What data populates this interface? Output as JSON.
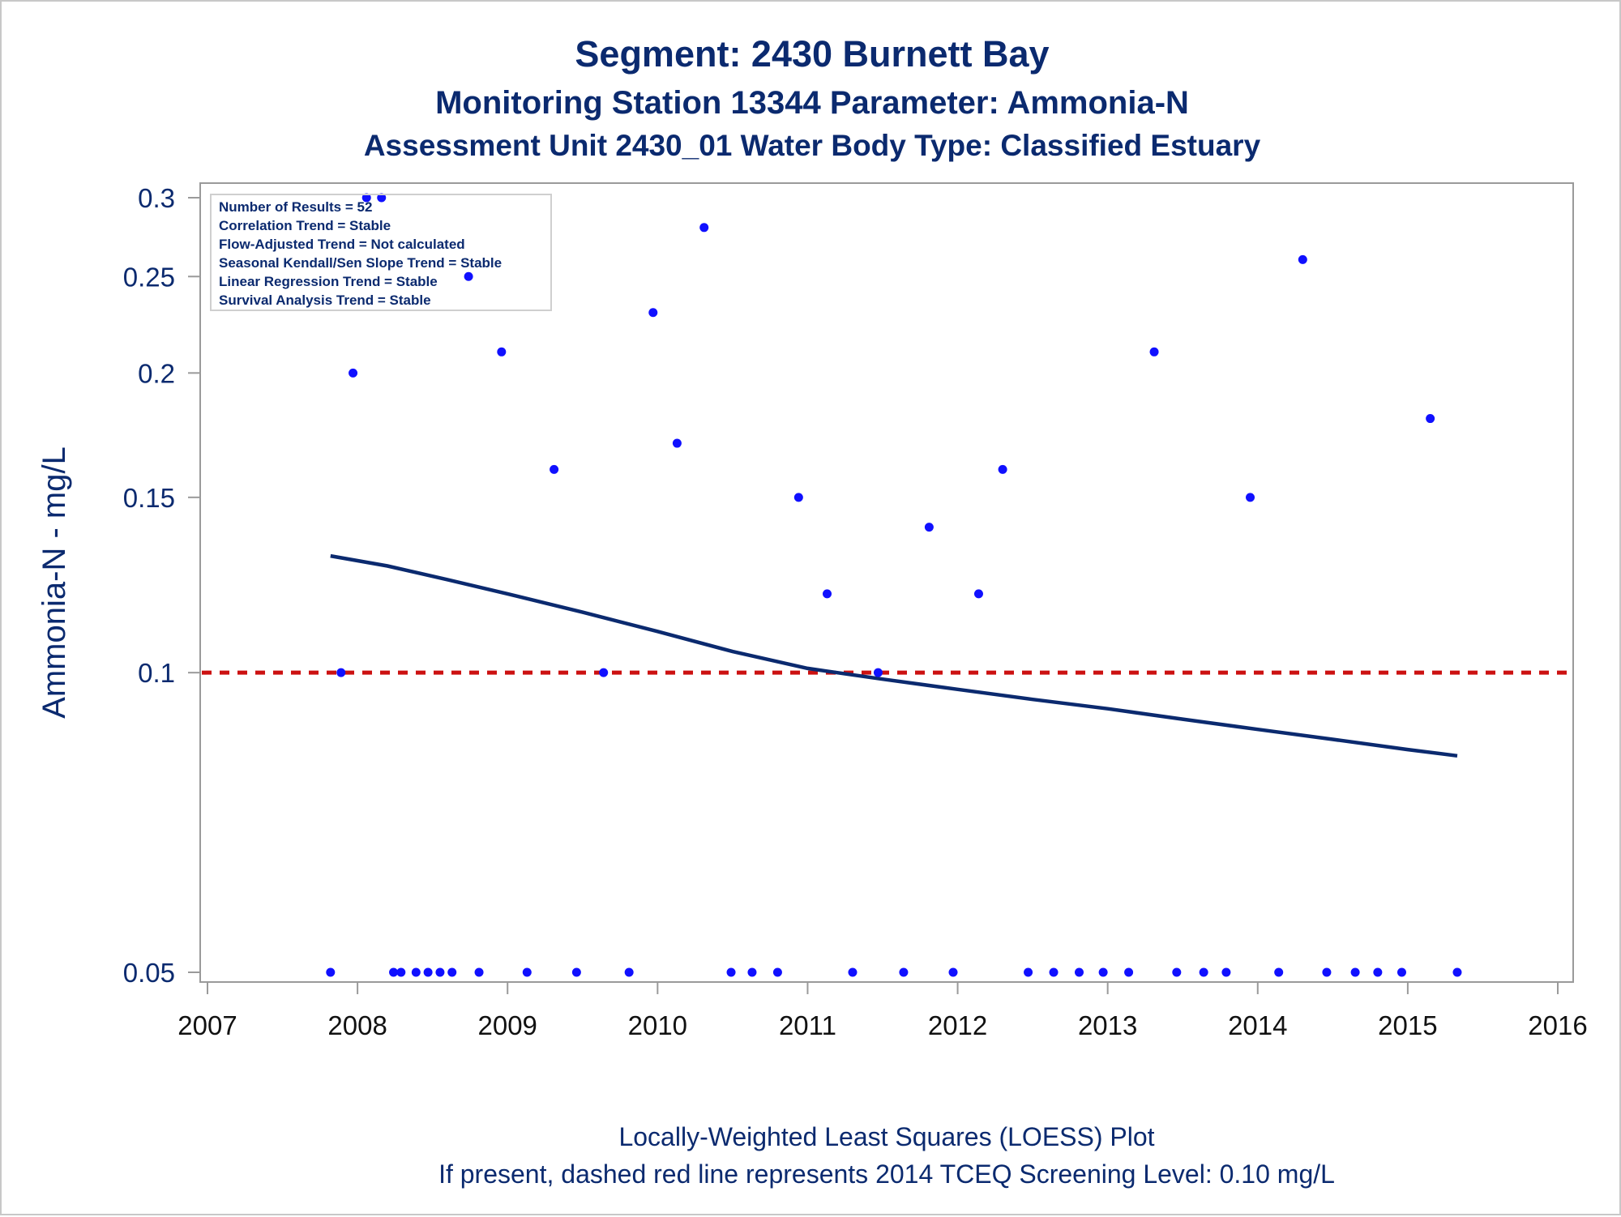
{
  "colors": {
    "title": "#0b2a6f",
    "text": "#0b2a6f",
    "axis_frame": "#9a9a9a",
    "points": "#1010ff",
    "loess_line": "#0b2a6f",
    "screening_line": "#cc1111",
    "legend_border": "#cfcfcf"
  },
  "chart_data": {
    "type": "scatter",
    "title": "Segment: 2430  Burnett Bay",
    "subtitle": "Monitoring Station 13344 Parameter: Ammonia-N",
    "subtitle2": "Assessment Unit 2430_01   Water Body Type: Classified Estuary",
    "ylabel": "Ammonia-N - mg/L",
    "xlabel": "",
    "xlim": [
      2007,
      2016
    ],
    "ylim": [
      0.05,
      0.3
    ],
    "yscale": "log",
    "x_ticks": [
      2007,
      2008,
      2009,
      2010,
      2011,
      2012,
      2013,
      2014,
      2015,
      2016
    ],
    "x_tick_labels": [
      "2007",
      "2008",
      "2009",
      "2010",
      "2011",
      "2012",
      "2013",
      "2014",
      "2015",
      "2016"
    ],
    "y_ticks": [
      0.05,
      0.1,
      0.15,
      0.2,
      0.25,
      0.3
    ],
    "y_tick_labels": [
      "0.05",
      "0.1",
      "0.15",
      "0.2",
      "0.25",
      "0.3"
    ],
    "grid": false,
    "legend_position": "top-left",
    "stats_box": [
      "Number of Results = 52",
      "Correlation Trend = Stable",
      "Flow-Adjusted Trend = Not calculated",
      "Seasonal Kendall/Sen Slope Trend = Stable",
      "Linear Regression Trend = Stable",
      "Survival Analysis Trend = Stable"
    ],
    "series": [
      {
        "kind": "points",
        "points": [
          [
            2007.82,
            0.05
          ],
          [
            2007.89,
            0.1
          ],
          [
            2007.97,
            0.2
          ],
          [
            2008.06,
            0.3
          ],
          [
            2008.16,
            0.3
          ],
          [
            2008.24,
            0.05
          ],
          [
            2008.29,
            0.05
          ],
          [
            2008.39,
            0.05
          ],
          [
            2008.47,
            0.05
          ],
          [
            2008.55,
            0.05
          ],
          [
            2008.63,
            0.05
          ],
          [
            2008.74,
            0.25
          ],
          [
            2008.81,
            0.05
          ],
          [
            2008.96,
            0.21
          ],
          [
            2009.13,
            0.05
          ],
          [
            2009.31,
            0.16
          ],
          [
            2009.46,
            0.05
          ],
          [
            2009.64,
            0.1
          ],
          [
            2009.81,
            0.05
          ],
          [
            2009.97,
            0.23
          ],
          [
            2010.13,
            0.17
          ],
          [
            2010.31,
            0.28
          ],
          [
            2010.49,
            0.05
          ],
          [
            2010.63,
            0.05
          ],
          [
            2010.8,
            0.05
          ],
          [
            2010.94,
            0.15
          ],
          [
            2011.13,
            0.12
          ],
          [
            2011.3,
            0.05
          ],
          [
            2011.47,
            0.1
          ],
          [
            2011.64,
            0.05
          ],
          [
            2011.81,
            0.14
          ],
          [
            2011.97,
            0.05
          ],
          [
            2012.14,
            0.12
          ],
          [
            2012.3,
            0.16
          ],
          [
            2012.47,
            0.05
          ],
          [
            2012.64,
            0.05
          ],
          [
            2012.81,
            0.05
          ],
          [
            2012.97,
            0.05
          ],
          [
            2013.14,
            0.05
          ],
          [
            2013.31,
            0.21
          ],
          [
            2013.46,
            0.05
          ],
          [
            2013.64,
            0.05
          ],
          [
            2013.79,
            0.05
          ],
          [
            2013.95,
            0.15
          ],
          [
            2014.14,
            0.05
          ],
          [
            2014.3,
            0.26
          ],
          [
            2014.46,
            0.05
          ],
          [
            2014.65,
            0.05
          ],
          [
            2014.8,
            0.05
          ],
          [
            2014.96,
            0.05
          ],
          [
            2015.15,
            0.18
          ],
          [
            2015.33,
            0.05
          ]
        ]
      },
      {
        "kind": "loess",
        "points": [
          [
            2007.82,
            0.131
          ],
          [
            2008.2,
            0.128
          ],
          [
            2008.6,
            0.124
          ],
          [
            2009.0,
            0.12
          ],
          [
            2009.5,
            0.115
          ],
          [
            2010.0,
            0.11
          ],
          [
            2010.5,
            0.105
          ],
          [
            2011.0,
            0.101
          ],
          [
            2011.5,
            0.0985
          ],
          [
            2012.0,
            0.0962
          ],
          [
            2012.5,
            0.094
          ],
          [
            2013.0,
            0.092
          ],
          [
            2013.5,
            0.0898
          ],
          [
            2014.0,
            0.0877
          ],
          [
            2014.5,
            0.0857
          ],
          [
            2015.0,
            0.0837
          ],
          [
            2015.33,
            0.0825
          ]
        ]
      }
    ],
    "reference_line": {
      "y": 0.1,
      "style": "dashed"
    },
    "footer_lines": [
      "Locally-Weighted Least Squares (LOESS) Plot",
      "If present, dashed red line represents 2014 TCEQ Screening Level: 0.10 mg/L"
    ]
  }
}
